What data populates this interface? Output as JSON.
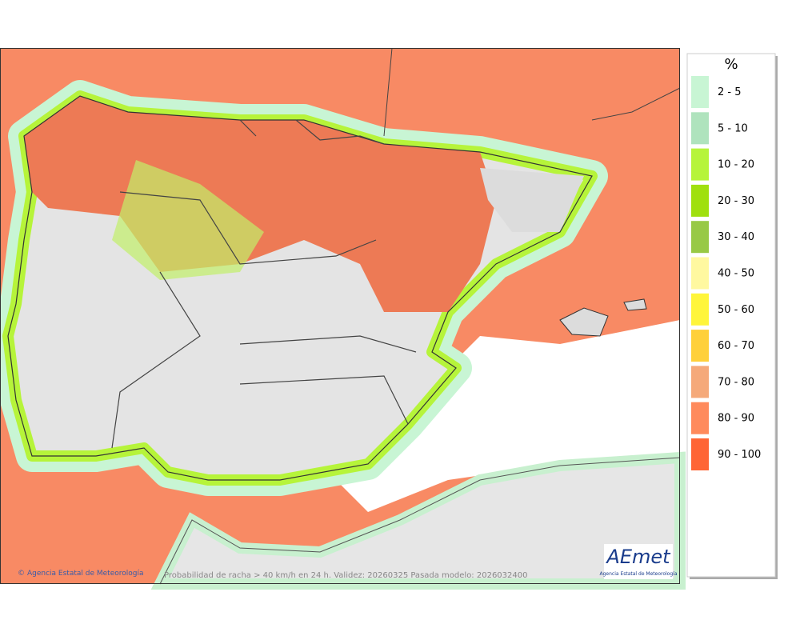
{
  "map": {
    "footer": {
      "credit": "Agencia Estatal de Meteorología",
      "caption": "Probabilidad de racha > 40 km/h en 24 h. Validez: 20260325 Pasada modelo: 2026032400"
    },
    "logo": {
      "name": "AEmet",
      "subtitle": "Agencia Estatal de Meteorología"
    },
    "legend": {
      "title": "%",
      "items": [
        {
          "label": "2 - 5",
          "color": "#c8f5d4"
        },
        {
          "label": "5 - 10",
          "color": "#afe3bd"
        },
        {
          "label": "10 - 20",
          "color": "#b6f43a"
        },
        {
          "label": "20 - 30",
          "color": "#a0e00e"
        },
        {
          "label": "30 - 40",
          "color": "#98c946"
        },
        {
          "label": "40 - 50",
          "color": "#fff8a0"
        },
        {
          "label": "50 - 60",
          "color": "#fff53a"
        },
        {
          "label": "60 - 70",
          "color": "#ffd03a"
        },
        {
          "label": "70 - 80",
          "color": "#f5a97a"
        },
        {
          "label": "80 - 90",
          "color": "#ff8a5c"
        },
        {
          "label": "90 - 100",
          "color": "#ff6535"
        }
      ]
    }
  }
}
